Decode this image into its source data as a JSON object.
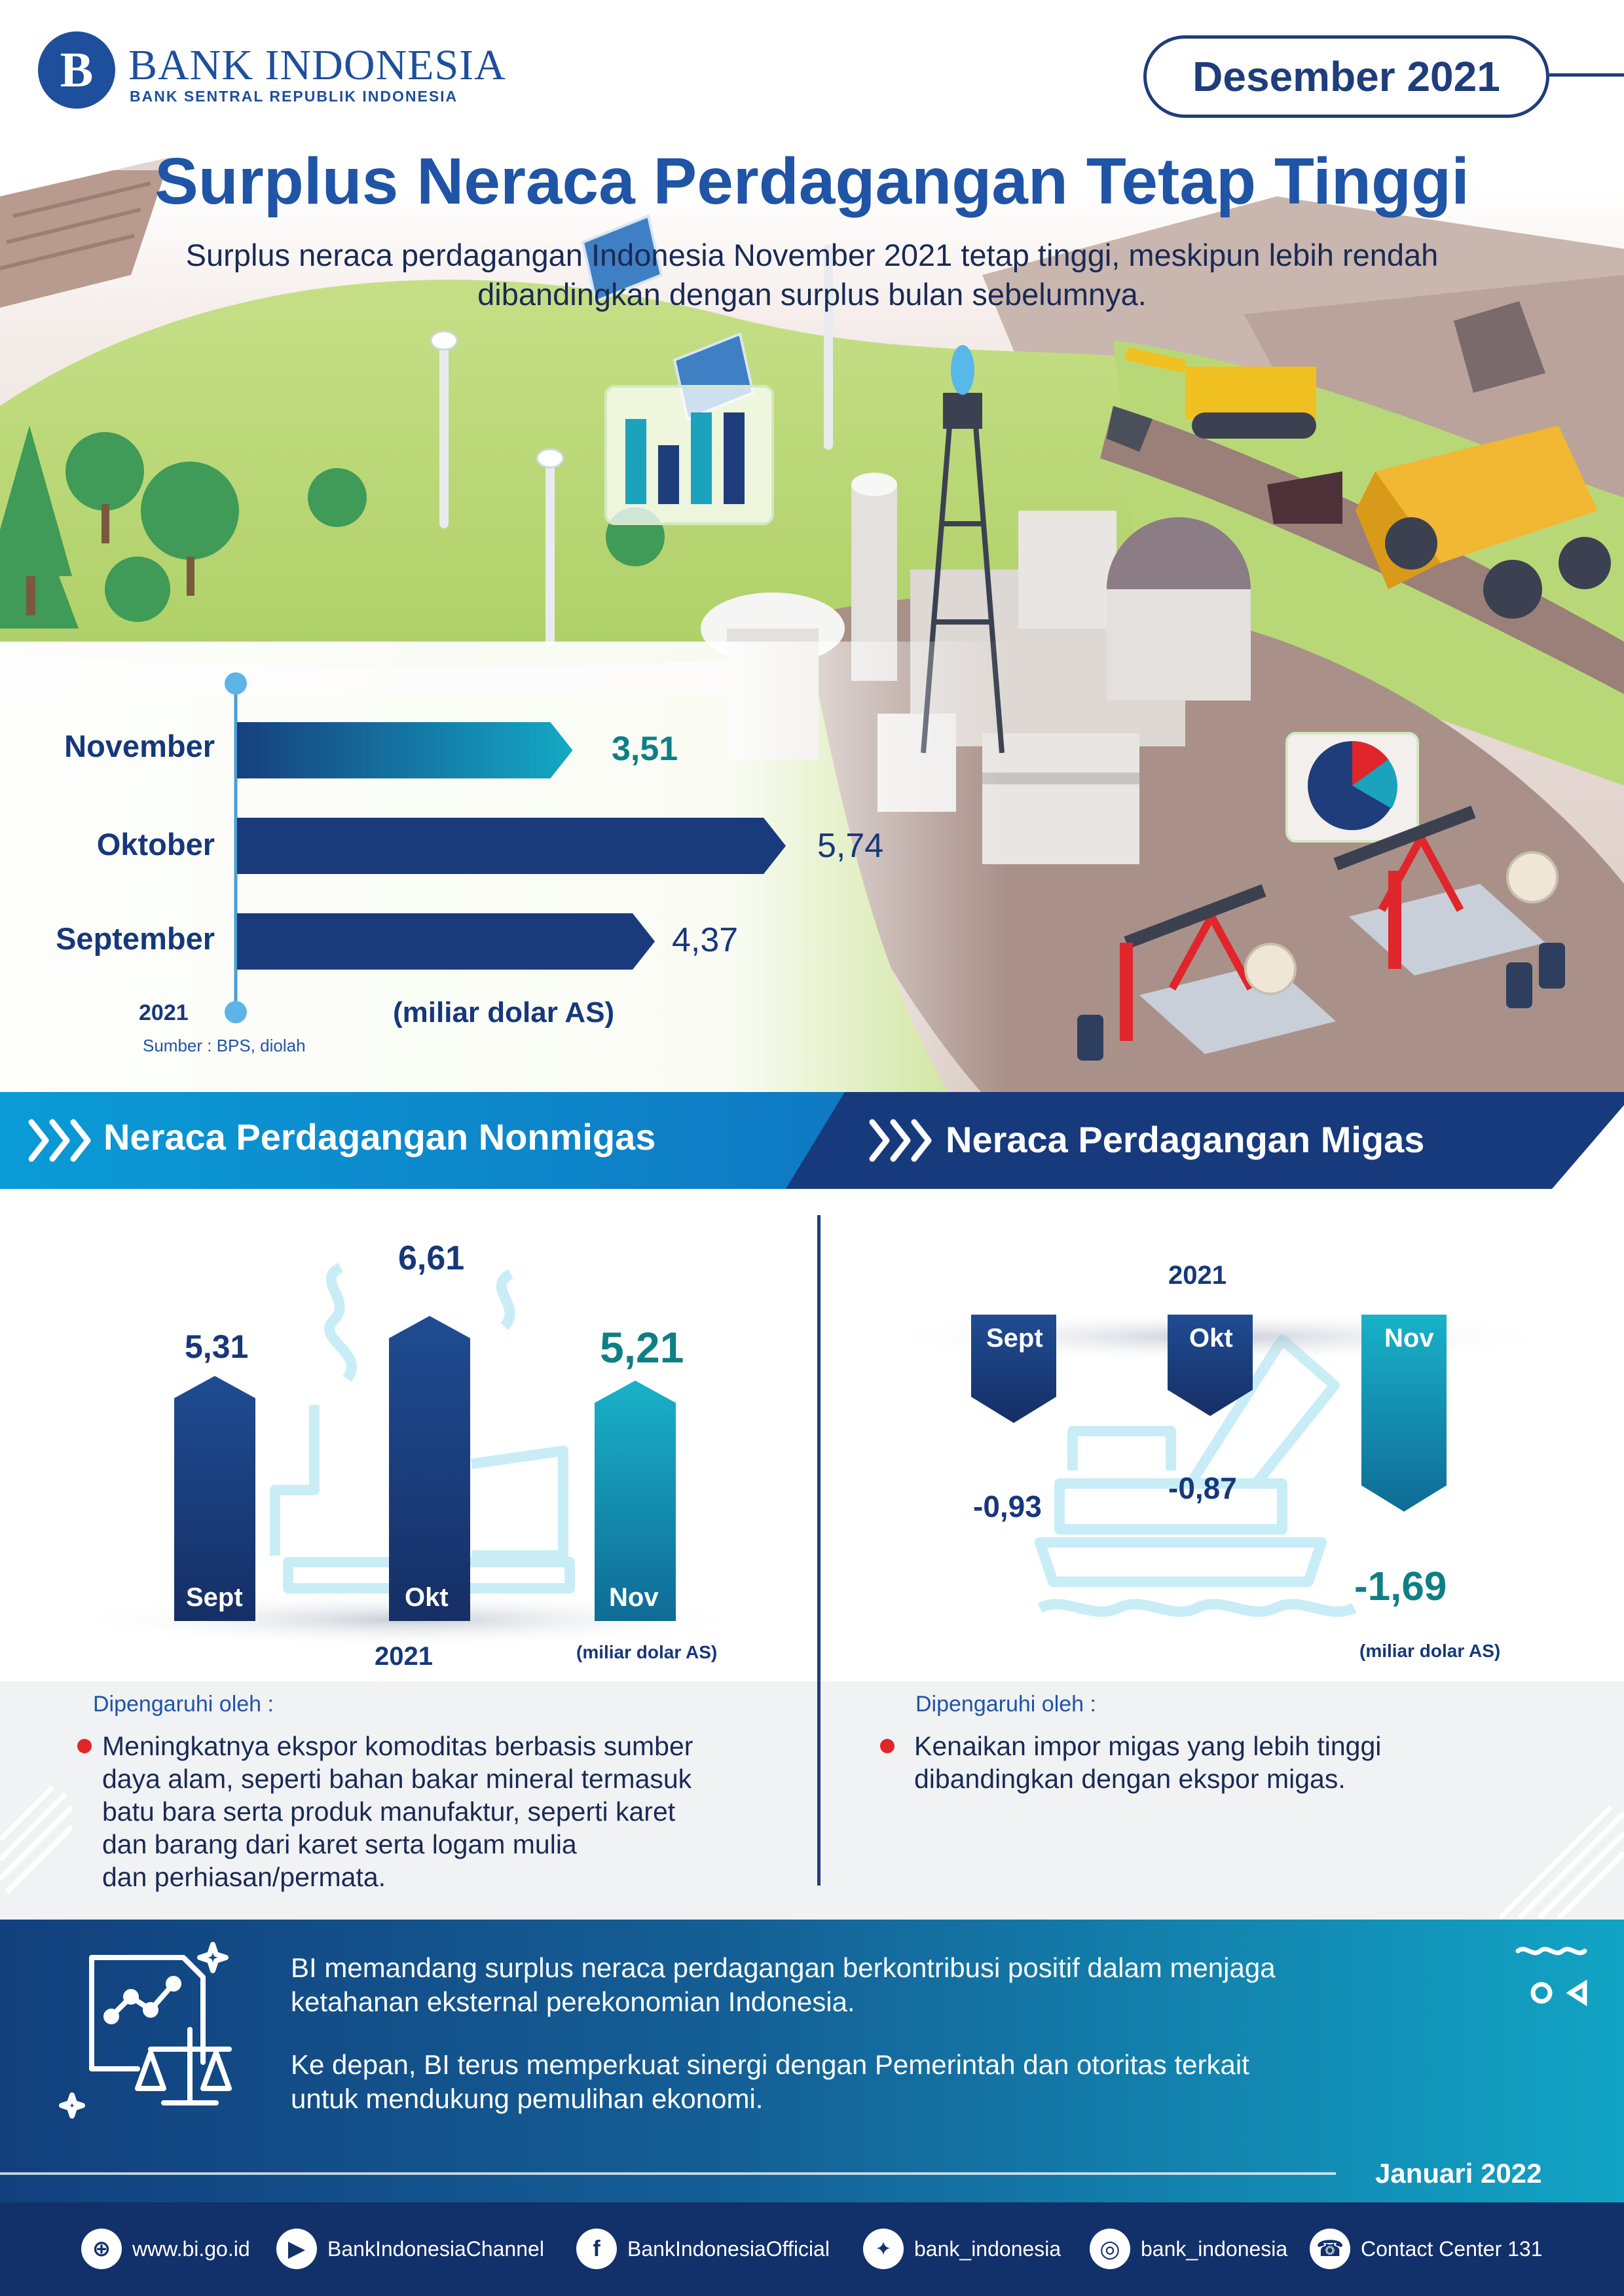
{
  "header": {
    "logo_mark": "B",
    "logo_name": "BANK INDONESIA",
    "logo_subtitle": "BANK SENTRAL REPUBLIK INDONESIA",
    "edition": "Desember 2021",
    "title": "Surplus Neraca Perdagangan Tetap Tinggi",
    "subtitle": "Surplus neraca perdagangan Indonesia November 2021 tetap tinggi, meskipun lebih rendah dibandingkan dengan surplus bulan sebelumnya."
  },
  "colors": {
    "navy": "#1e3d7a",
    "blue": "#1f54a6",
    "teal": "#12a4c4",
    "teal_value": "#0f7f86",
    "red_bullet": "#e0262b",
    "banner_light": "#0a9bd6",
    "banner_dark": "#173a7c"
  },
  "chart_data": [
    {
      "type": "bar",
      "orientation": "horizontal",
      "categories": [
        "November",
        "Oktober",
        "September"
      ],
      "values": [
        3.51,
        5.74,
        4.37
      ],
      "value_labels": [
        "3,51",
        "5,74",
        "4,37"
      ],
      "axis_label": "2021",
      "unit": "(miliar dolar AS)",
      "source": "Sumber : BPS, diolah"
    },
    {
      "type": "bar",
      "title": "Neraca Perdagangan Nonmigas",
      "categories": [
        "Sept",
        "Okt",
        "Nov"
      ],
      "values": [
        5.31,
        6.61,
        5.21
      ],
      "value_labels": [
        "5,31",
        "6,61",
        "5,21"
      ],
      "xlabel": "2021",
      "unit": "(miliar dolar AS)"
    },
    {
      "type": "bar",
      "title": "Neraca Perdagangan Migas",
      "categories": [
        "Sept",
        "Okt",
        "Nov"
      ],
      "values": [
        -0.93,
        -0.87,
        -1.69
      ],
      "value_labels": [
        "-0,93",
        "-0,87",
        "-1,69"
      ],
      "xlabel": "2021",
      "unit": "(miliar dolar AS)"
    }
  ],
  "sections": {
    "nonmigas_title": "Neraca Perdagangan Nonmigas",
    "migas_title": "Neraca Perdagangan Migas",
    "influenced_by": "Dipengaruhi oleh :",
    "nonmigas_factor": "Meningkatnya ekspor komoditas berbasis sumber daya alam, seperti bahan bakar mineral termasuk batu bara serta produk manufaktur, seperti karet dan barang dari karet serta logam mulia dan perhiasan/permata.",
    "nonmigas_factor_lines": [
      "Meningkatnya ekspor komoditas berbasis sumber",
      "daya alam, seperti bahan bakar mineral termasuk",
      "batu bara serta produk manufaktur, seperti karet",
      "dan barang dari karet serta logam mulia",
      "dan perhiasan/permata."
    ],
    "migas_factor_lines": [
      "Kenaikan impor migas yang lebih tinggi",
      "dibandingkan dengan ekspor migas."
    ]
  },
  "conclusion": {
    "p1_lines": [
      "BI memandang surplus neraca perdagangan berkontribusi positif dalam menjaga",
      "ketahanan eksternal perekonomian Indonesia."
    ],
    "p2_lines": [
      "Ke depan, BI terus memperkuat sinergi dengan Pemerintah dan otoritas terkait",
      "untuk mendukung pemulihan ekonomi."
    ],
    "date": "Januari 2022"
  },
  "footer": {
    "items": [
      {
        "icon": "globe-icon",
        "text": "www.bi.go.id"
      },
      {
        "icon": "play-icon",
        "text": "BankIndonesiaChannel"
      },
      {
        "icon": "facebook-icon",
        "text": "BankIndonesiaOfficial"
      },
      {
        "icon": "twitter-icon",
        "text": "bank_indonesia"
      },
      {
        "icon": "instagram-icon",
        "text": "bank_indonesia"
      },
      {
        "icon": "phone-icon",
        "text": "Contact Center 131"
      }
    ]
  }
}
